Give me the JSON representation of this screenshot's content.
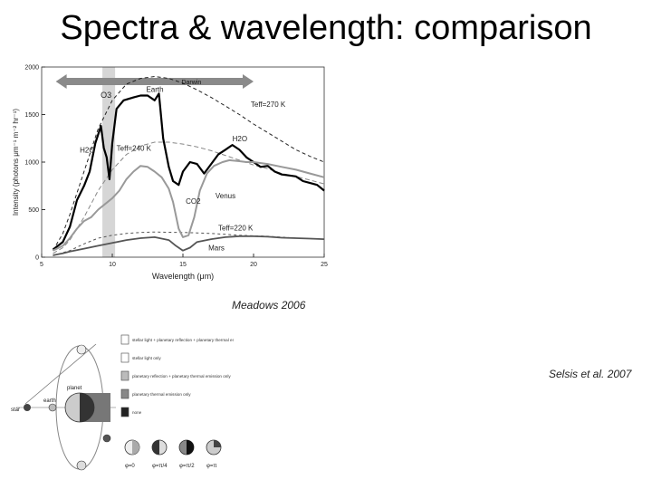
{
  "slide": {
    "title": "Spectra & wavelength: comparison",
    "caption_left": "Meadows 2006",
    "caption_right": "Selsis et al. 2007"
  },
  "chart_data": {
    "type": "line",
    "xlabel": "Wavelength (μm)",
    "ylabel": "Intensity (photons μm⁻¹ m⁻² hr⁻¹)",
    "xlim": [
      5,
      25
    ],
    "ylim": [
      0,
      2000
    ],
    "xticks": [
      5,
      10,
      15,
      20,
      25
    ],
    "yticks": [
      0,
      500,
      1000,
      1500,
      2000
    ],
    "band_label": "Darwin",
    "band_range": [
      6,
      20
    ],
    "ozone_label": "O3",
    "ozone_band": [
      9.3,
      10.2
    ],
    "series": [
      {
        "name": "Earth",
        "color": "#000000",
        "width": 2.2,
        "points": [
          [
            5.8,
            80
          ],
          [
            6.5,
            160
          ],
          [
            7,
            320
          ],
          [
            7.5,
            600
          ],
          [
            8,
            750
          ],
          [
            8.4,
            900
          ],
          [
            8.8,
            1200
          ],
          [
            9.2,
            1380
          ],
          [
            9.4,
            1150
          ],
          [
            9.6,
            1050
          ],
          [
            9.8,
            820
          ],
          [
            10.0,
            1200
          ],
          [
            10.3,
            1560
          ],
          [
            10.8,
            1650
          ],
          [
            11.5,
            1680
          ],
          [
            12.0,
            1700
          ],
          [
            12.5,
            1700
          ],
          [
            13.0,
            1650
          ],
          [
            13.3,
            1720
          ],
          [
            13.6,
            1250
          ],
          [
            14.0,
            950
          ],
          [
            14.3,
            800
          ],
          [
            14.7,
            760
          ],
          [
            15.0,
            900
          ],
          [
            15.5,
            1000
          ],
          [
            16.0,
            980
          ],
          [
            16.5,
            880
          ],
          [
            17.0,
            980
          ],
          [
            17.5,
            1080
          ],
          [
            18.0,
            1130
          ],
          [
            18.5,
            1180
          ],
          [
            19.0,
            1130
          ],
          [
            19.5,
            1050
          ],
          [
            20.0,
            1000
          ],
          [
            20.5,
            950
          ],
          [
            21.0,
            960
          ],
          [
            21.5,
            900
          ],
          [
            22.0,
            870
          ],
          [
            22.5,
            860
          ],
          [
            23.0,
            850
          ],
          [
            23.5,
            800
          ],
          [
            24.0,
            780
          ],
          [
            24.5,
            760
          ],
          [
            25.0,
            700
          ]
        ]
      },
      {
        "name": "Venus",
        "color": "#999999",
        "width": 2,
        "points": [
          [
            5.8,
            70
          ],
          [
            6.5,
            120
          ],
          [
            7,
            200
          ],
          [
            7.5,
            300
          ],
          [
            8,
            380
          ],
          [
            8.5,
            420
          ],
          [
            9.0,
            500
          ],
          [
            9.5,
            560
          ],
          [
            10.0,
            620
          ],
          [
            10.5,
            700
          ],
          [
            11.0,
            820
          ],
          [
            11.5,
            900
          ],
          [
            12.0,
            960
          ],
          [
            12.5,
            950
          ],
          [
            13.0,
            900
          ],
          [
            13.5,
            840
          ],
          [
            14.0,
            720
          ],
          [
            14.3,
            580
          ],
          [
            14.7,
            300
          ],
          [
            15.0,
            210
          ],
          [
            15.4,
            230
          ],
          [
            15.8,
            420
          ],
          [
            16.2,
            700
          ],
          [
            16.7,
            880
          ],
          [
            17.2,
            960
          ],
          [
            17.8,
            1000
          ],
          [
            18.3,
            1020
          ],
          [
            19.0,
            1010
          ],
          [
            19.5,
            1000
          ],
          [
            20.0,
            1000
          ],
          [
            21.0,
            980
          ],
          [
            22.0,
            950
          ],
          [
            23.0,
            920
          ],
          [
            24.0,
            880
          ],
          [
            25.0,
            840
          ]
        ]
      },
      {
        "name": "Mars",
        "color": "#555555",
        "width": 1.8,
        "points": [
          [
            5.8,
            20
          ],
          [
            6.5,
            40
          ],
          [
            7,
            60
          ],
          [
            8,
            90
          ],
          [
            9,
            120
          ],
          [
            10,
            150
          ],
          [
            11,
            180
          ],
          [
            12,
            200
          ],
          [
            13,
            210
          ],
          [
            14,
            180
          ],
          [
            14.5,
            120
          ],
          [
            15,
            70
          ],
          [
            15.5,
            100
          ],
          [
            16,
            160
          ],
          [
            17,
            190
          ],
          [
            18,
            210
          ],
          [
            19,
            220
          ],
          [
            20,
            220
          ],
          [
            21,
            215
          ],
          [
            22,
            205
          ],
          [
            23,
            200
          ],
          [
            24,
            195
          ],
          [
            25,
            190
          ]
        ]
      }
    ],
    "reference_curves": [
      {
        "label": "Teff=270 K",
        "color": "#222222",
        "dash": "4,3",
        "points": [
          [
            5.8,
            70
          ],
          [
            6.5,
            250
          ],
          [
            7,
            450
          ],
          [
            8,
            900
          ],
          [
            9,
            1350
          ],
          [
            10,
            1650
          ],
          [
            11,
            1820
          ],
          [
            12,
            1880
          ],
          [
            13,
            1900
          ],
          [
            14,
            1880
          ],
          [
            15,
            1830
          ],
          [
            16,
            1760
          ],
          [
            17,
            1680
          ],
          [
            18,
            1590
          ],
          [
            19,
            1500
          ],
          [
            20,
            1400
          ],
          [
            21,
            1310
          ],
          [
            22,
            1220
          ],
          [
            23,
            1130
          ],
          [
            24,
            1060
          ],
          [
            25,
            1000
          ]
        ]
      },
      {
        "label": "Teff=240 K",
        "color": "#888888",
        "dash": "5,3",
        "points": [
          [
            5.8,
            40
          ],
          [
            6.5,
            100
          ],
          [
            7,
            180
          ],
          [
            8,
            420
          ],
          [
            9,
            700
          ],
          [
            10,
            920
          ],
          [
            11,
            1080
          ],
          [
            12,
            1170
          ],
          [
            13,
            1210
          ],
          [
            14,
            1210
          ],
          [
            15,
            1190
          ],
          [
            16,
            1160
          ],
          [
            17,
            1120
          ],
          [
            18,
            1070
          ],
          [
            19,
            1020
          ],
          [
            20,
            970
          ],
          [
            21,
            930
          ],
          [
            22,
            880
          ],
          [
            23,
            850
          ],
          [
            24,
            810
          ],
          [
            25,
            770
          ]
        ]
      },
      {
        "label": "Teff=220 K",
        "color": "#555555",
        "dash": "3,3",
        "points": [
          [
            5.8,
            15
          ],
          [
            7,
            70
          ],
          [
            8,
            140
          ],
          [
            9,
            200
          ],
          [
            10,
            230
          ],
          [
            11,
            250
          ],
          [
            12,
            260
          ],
          [
            13,
            265
          ],
          [
            14,
            262
          ],
          [
            15,
            260
          ],
          [
            16,
            255
          ],
          [
            17,
            250
          ],
          [
            18,
            240
          ],
          [
            19,
            230
          ],
          [
            20,
            225
          ],
          [
            21,
            220
          ],
          [
            22,
            210
          ],
          [
            23,
            200
          ],
          [
            24,
            195
          ],
          [
            25,
            190
          ]
        ]
      }
    ],
    "annotations": [
      {
        "text": "Earth",
        "x": 12.4,
        "y": 1740
      },
      {
        "text": "H2O",
        "x": 7.7,
        "y": 1100
      },
      {
        "text": "H2O",
        "x": 18.5,
        "y": 1220
      },
      {
        "text": "CO2",
        "x": 15.2,
        "y": 560
      },
      {
        "text": "Venus",
        "x": 17.3,
        "y": 620
      },
      {
        "text": "Mars",
        "x": 16.8,
        "y": 70
      },
      {
        "text": "Teff=270 K",
        "x": 19.8,
        "y": 1580
      },
      {
        "text": "Teff=240 K",
        "x": 10.3,
        "y": 1120
      },
      {
        "text": "Teff=220 K",
        "x": 17.5,
        "y": 280
      }
    ]
  },
  "phase_figure": {
    "legend": [
      {
        "text": "stellar light + planetary reflection + planetary thermal emission",
        "fill": "#ffffff"
      },
      {
        "text": "stellar light only",
        "fill": "#ffffff"
      },
      {
        "text": "planetary reflection + planetary thermal emission only",
        "fill": "#bbbbbb"
      },
      {
        "text": "planetary thermal emission only",
        "fill": "#888888"
      },
      {
        "text": "none",
        "fill": "#222222"
      }
    ],
    "labels": {
      "star": "star",
      "planet": "planet",
      "earth": "earth"
    },
    "phase_labels": [
      "φ=0",
      "φ=π/4",
      "φ=π/2",
      "φ=π"
    ]
  }
}
